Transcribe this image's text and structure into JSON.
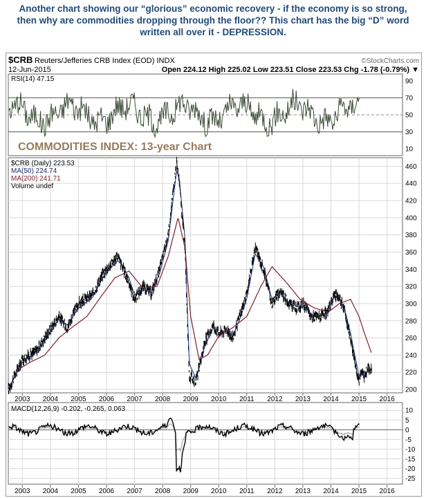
{
  "caption": {
    "line1": "Another chart showing our “glorious” economic recovery - if the economy is so strong,",
    "line2": "then why are commodities dropping through the floor?? This chart has the big “D” word",
    "line3": "written all over it - DEPRESSION."
  },
  "header": {
    "symbol": "$CRB",
    "name": "Reuters/Jefferies CRB Index (EOD)  INDX",
    "watermark": "©StockCharts.com",
    "date": "12-Jun-2015",
    "quote": "Open 224.12  High 225.02  Low 223.51  Close 223.53  Chg -1.78 (-0.79%) ▼"
  },
  "rsi": {
    "label": "RSI(14) 47.15",
    "ticks": [
      "10",
      "30",
      "50",
      "70",
      "90"
    ],
    "levels": [
      30,
      70
    ]
  },
  "overlay_title": "COMMODITIES INDEX: 13-year Chart",
  "legend": {
    "crb": "$CRB (Daily) 223.53",
    "ma50": "MA(50) 224.74",
    "ma200": "MA(200) 241.71",
    "volume": "Volume undef"
  },
  "colors": {
    "caption": "#1f4a7a",
    "rsi_line": "#3b4a36",
    "price": "#000000",
    "ma50": "#1c2a6e",
    "ma200": "#7a1f2a",
    "overlay": "#9a7a5a",
    "grid": "#d8d8d8"
  },
  "macd": {
    "label": "MACD(12,26,9) -0.202, -0.265, 0.063",
    "ticks": [
      "10",
      "5",
      "0",
      "-5",
      "-10",
      "-15",
      "-20",
      "-25"
    ]
  },
  "chart_data": {
    "type": "line",
    "x_axis": [
      "2003",
      "2004",
      "2005",
      "2006",
      "2007",
      "2008",
      "2009",
      "2010",
      "2011",
      "2012",
      "2013",
      "2014",
      "2015",
      "2016"
    ],
    "y_ticks": [
      "200",
      "220",
      "240",
      "260",
      "280",
      "300",
      "320",
      "340",
      "360",
      "380",
      "400",
      "420",
      "440",
      "460"
    ],
    "ylim": [
      196,
      470
    ],
    "series": [
      {
        "name": "$CRB (Daily) 223.53",
        "t": [
          2002.5,
          2003.0,
          2003.5,
          2004.0,
          2004.3,
          2004.6,
          2005.0,
          2005.5,
          2005.8,
          2006.0,
          2006.4,
          2006.6,
          2006.8,
          2007.0,
          2007.3,
          2007.6,
          2007.9,
          2008.2,
          2008.5,
          2008.6,
          2008.8,
          2008.95,
          2009.2,
          2009.5,
          2009.8,
          2010.0,
          2010.3,
          2010.5,
          2010.8,
          2011.0,
          2011.3,
          2011.6,
          2011.9,
          2012.2,
          2012.5,
          2012.8,
          2013.0,
          2013.3,
          2013.6,
          2013.9,
          2014.1,
          2014.3,
          2014.5,
          2014.7,
          2014.9,
          2015.0,
          2015.1,
          2015.2,
          2015.3,
          2015.45
        ],
        "v": [
          200,
          235,
          245,
          270,
          285,
          272,
          300,
          310,
          330,
          340,
          355,
          340,
          325,
          305,
          320,
          312,
          340,
          380,
          465,
          440,
          360,
          215,
          210,
          255,
          275,
          265,
          270,
          260,
          290,
          310,
          365,
          340,
          300,
          315,
          300,
          295,
          300,
          285,
          285,
          290,
          310,
          308,
          290,
          260,
          225,
          210,
          220,
          215,
          225,
          223
        ]
      },
      {
        "name": "MA(50) 224.74",
        "t": [
          2002.5,
          2003.0,
          2003.5,
          2004.0,
          2004.3,
          2004.6,
          2005.0,
          2005.5,
          2005.8,
          2006.0,
          2006.4,
          2006.6,
          2006.8,
          2007.0,
          2007.3,
          2007.6,
          2007.9,
          2008.2,
          2008.5,
          2008.6,
          2008.8,
          2008.95,
          2009.2,
          2009.5,
          2009.8,
          2010.0,
          2010.3,
          2010.5,
          2010.8,
          2011.0,
          2011.3,
          2011.6,
          2011.9,
          2012.2,
          2012.5,
          2012.8,
          2013.0,
          2013.3,
          2013.6,
          2013.9,
          2014.1,
          2014.3,
          2014.5,
          2014.7,
          2014.9,
          2015.0,
          2015.1,
          2015.2,
          2015.3,
          2015.45
        ],
        "v": [
          200,
          232,
          243,
          266,
          282,
          275,
          295,
          307,
          326,
          336,
          350,
          343,
          330,
          310,
          318,
          313,
          336,
          373,
          455,
          444,
          375,
          230,
          212,
          250,
          271,
          266,
          269,
          262,
          286,
          306,
          358,
          343,
          305,
          313,
          301,
          296,
          299,
          287,
          286,
          289,
          307,
          307,
          292,
          265,
          232,
          215,
          218,
          216,
          222,
          224
        ]
      },
      {
        "name": "MA(200) 241.71",
        "t": [
          2002.8,
          2003.3,
          2003.8,
          2004.3,
          2004.8,
          2005.3,
          2005.8,
          2006.3,
          2006.8,
          2007.3,
          2007.8,
          2008.2,
          2008.55,
          2008.8,
          2009.0,
          2009.3,
          2009.6,
          2010.0,
          2010.5,
          2011.0,
          2011.5,
          2011.9,
          2012.4,
          2012.9,
          2013.4,
          2013.9,
          2014.3,
          2014.7,
          2015.0,
          2015.2,
          2015.45
        ],
        "v": [
          222,
          232,
          240,
          260,
          273,
          285,
          308,
          330,
          338,
          318,
          320,
          355,
          400,
          365,
          285,
          235,
          240,
          262,
          272,
          285,
          320,
          343,
          325,
          305,
          295,
          290,
          300,
          305,
          285,
          265,
          242
        ]
      }
    ]
  }
}
